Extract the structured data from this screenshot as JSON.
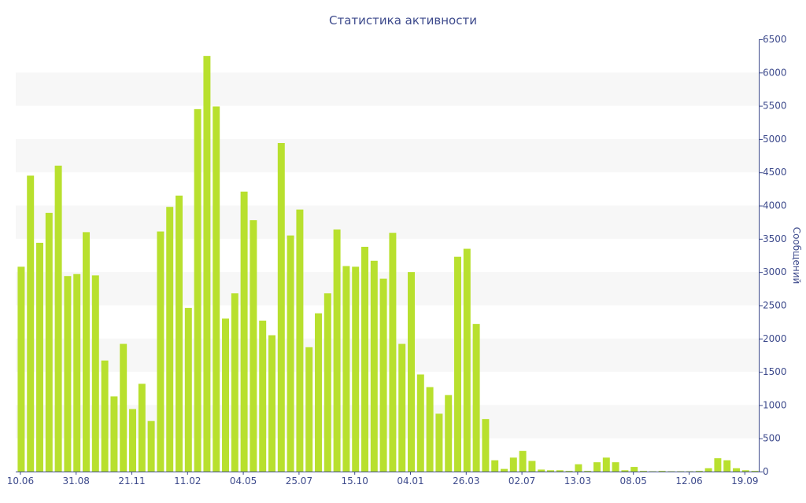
{
  "chart_data": {
    "type": "bar",
    "title": "Статистика активности",
    "xlabel": "",
    "ylabel": "Сообщений",
    "y_axis_position": "right",
    "ylim": [
      0,
      6500
    ],
    "y_ticks": [
      0,
      500,
      1000,
      1500,
      2000,
      2500,
      3000,
      3500,
      4000,
      4500,
      5000,
      5500,
      6000,
      6500
    ],
    "x_tick_labels": [
      {
        "label": "10.06",
        "index": 0
      },
      {
        "label": "31.08",
        "index": 6
      },
      {
        "label": "21.11",
        "index": 12
      },
      {
        "label": "11.02",
        "index": 18
      },
      {
        "label": "04.05",
        "index": 24
      },
      {
        "label": "25.07",
        "index": 30
      },
      {
        "label": "15.10",
        "index": 36
      },
      {
        "label": "04.01",
        "index": 42
      },
      {
        "label": "26.03",
        "index": 48
      },
      {
        "label": "02.07",
        "index": 54
      },
      {
        "label": "13.03",
        "index": 60
      },
      {
        "label": "08.05",
        "index": 66
      },
      {
        "label": "12.06",
        "index": 72
      },
      {
        "label": "19.09",
        "index": 78
      }
    ],
    "grid": "alternating horizontal bands",
    "legend": "none",
    "bar_color": "#b8e02e",
    "values": [
      3080,
      4450,
      3440,
      3890,
      4600,
      2940,
      2970,
      3600,
      2950,
      1670,
      1130,
      1920,
      940,
      1320,
      760,
      3610,
      3980,
      4150,
      2460,
      5450,
      6250,
      5490,
      2300,
      2680,
      4210,
      3780,
      2270,
      2050,
      4940,
      3550,
      3940,
      1870,
      2380,
      2680,
      3640,
      3090,
      3080,
      3380,
      3170,
      2900,
      3590,
      1920,
      3000,
      1460,
      1270,
      870,
      1150,
      3230,
      3350,
      2220,
      790,
      170,
      40,
      210,
      310,
      160,
      30,
      20,
      20,
      10,
      110,
      10,
      140,
      210,
      140,
      20,
      70,
      10,
      5,
      10,
      5,
      5,
      5,
      10,
      50,
      200,
      170,
      50,
      20,
      10
    ]
  }
}
